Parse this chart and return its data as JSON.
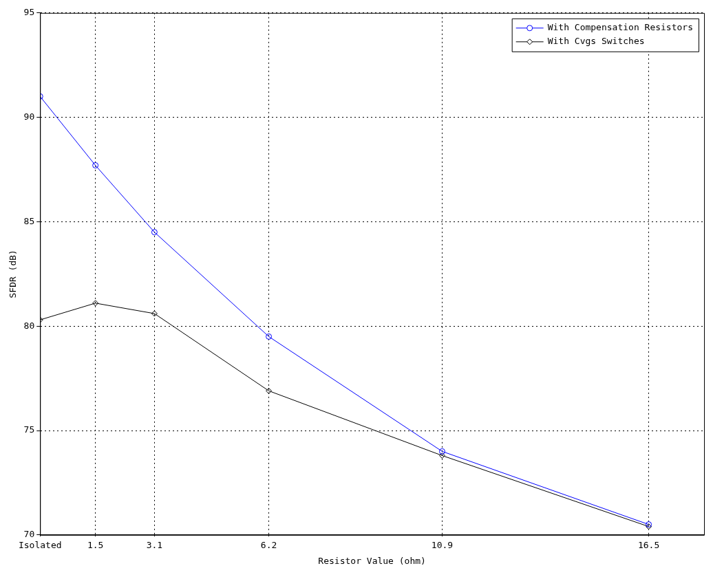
{
  "chart_data": {
    "type": "line",
    "xlabel": "Resistor Value (ohm)",
    "ylabel": "SFDR (dB)",
    "x": [
      0,
      1.5,
      3.1,
      6.2,
      10.9,
      16.5
    ],
    "series": [
      {
        "name": "With Compensation Resistors",
        "color": "#0000ff",
        "marker": "circle",
        "values": [
          91.0,
          87.7,
          84.5,
          79.5,
          74.0,
          70.5
        ]
      },
      {
        "name": "With Cvgs Switches",
        "color": "#000000",
        "marker": "diamond",
        "values": [
          80.3,
          81.1,
          80.6,
          76.9,
          73.8,
          70.4
        ]
      }
    ],
    "xlim": [
      0,
      18
    ],
    "xticks": [
      {
        "value": 0,
        "label": "Isolated"
      },
      1.5,
      3.1,
      6.2,
      10.9,
      16.5
    ],
    "ylim": [
      70,
      95
    ],
    "yticks": [
      70,
      75,
      80,
      85,
      90,
      95
    ],
    "grid": true,
    "legend": "top right",
    "line_style": "solid"
  }
}
